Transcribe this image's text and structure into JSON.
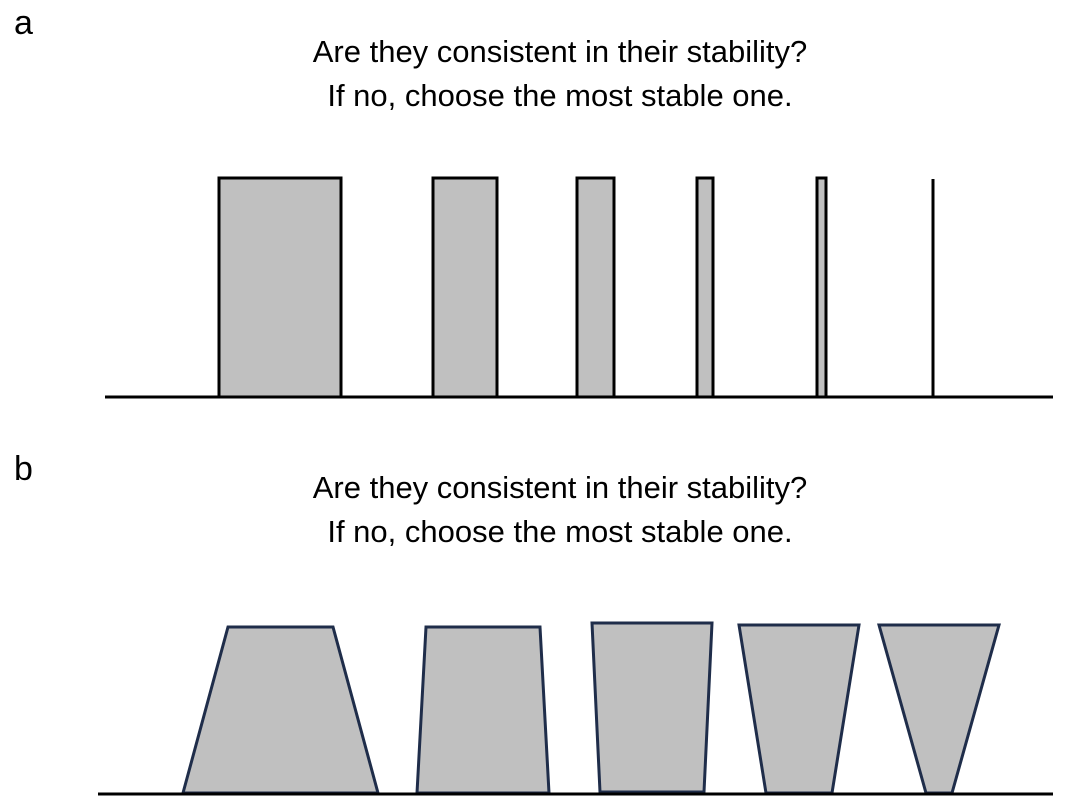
{
  "panels": [
    {
      "label": "a",
      "question_line1": "Are they consistent in their stability?",
      "question_line2": "If no, choose the most stable one.",
      "shape_kind": "rectangles of decreasing width, equal height",
      "count": 6
    },
    {
      "label": "b",
      "question_line1": "Are they consistent in their stability?",
      "question_line2": "If no, choose the most stable one.",
      "shape_kind": "trapezoids from wide base to narrow base",
      "count": 5
    }
  ],
  "colors": {
    "fill": "#c0c0c0",
    "stroke_a": "#000000",
    "stroke_b": "#1f2d4a",
    "ground": "#000000"
  }
}
